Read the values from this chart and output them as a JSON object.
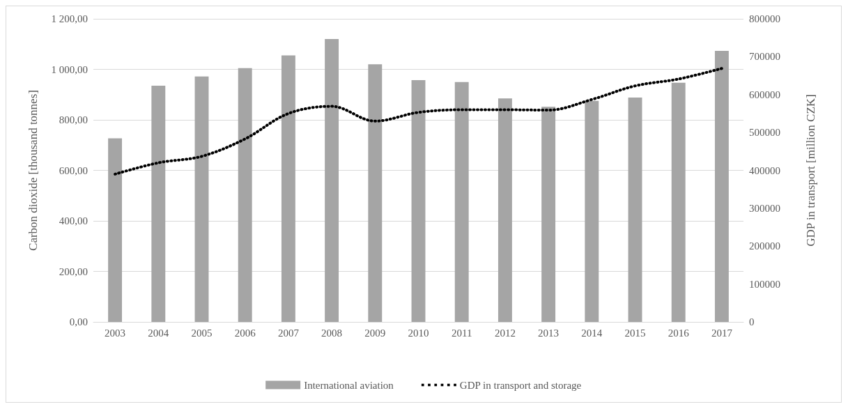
{
  "chart_data": {
    "type": "bar",
    "ylabel": "Carbon dioxide [thousand tonnes]",
    "y2label": "GDP in transport [million CZK]",
    "categories": [
      "2003",
      "2004",
      "2005",
      "2006",
      "2007",
      "2008",
      "2009",
      "2010",
      "2011",
      "2012",
      "2013",
      "2014",
      "2015",
      "2016",
      "2017"
    ],
    "series": [
      {
        "name": "International aviation",
        "color": "#a5a5a5",
        "values": [
          727,
          935,
          972,
          1005,
          1055,
          1120,
          1020,
          957,
          950,
          885,
          852,
          875,
          888,
          947,
          1073
        ]
      },
      {
        "name": "GDP in transport and storage",
        "type": "line",
        "axis": "y2",
        "color": "#000000",
        "line_style": "dotted",
        "marker": "none",
        "values": [
          390000,
          420000,
          437000,
          483000,
          550000,
          569000,
          530000,
          553000,
          560000,
          560000,
          559000,
          587000,
          623000,
          641000,
          669000
        ]
      }
    ],
    "ylim": [
      0,
      1200
    ],
    "yticks": [
      {
        "value": 0,
        "label": "0,00"
      },
      {
        "value": 200,
        "label": "200,00"
      },
      {
        "value": 400,
        "label": "400,00"
      },
      {
        "value": 600,
        "label": "600,00"
      },
      {
        "value": 800,
        "label": "800,00"
      },
      {
        "value": 1000,
        "label": "1 000,00"
      },
      {
        "value": 1200,
        "label": "1 200,00"
      }
    ],
    "y2lim": [
      0,
      800000
    ],
    "y2ticks": [
      0,
      100000,
      200000,
      300000,
      400000,
      500000,
      600000,
      700000,
      800000
    ],
    "grid": "y",
    "legend": "bottom"
  }
}
